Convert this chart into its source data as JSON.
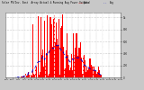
{
  "title": "Solar PV/Inv. East  Array Actual & Running Avg Power Output",
  "bg_color": "#c8c8c8",
  "plot_bg_color": "#ffffff",
  "bar_color": "#ff0000",
  "avg_line_color": "#0000cc",
  "grid_color": "#aaaaaa",
  "title_color": "#000000",
  "n_bars": 120,
  "ylim": [
    0,
    1.08
  ],
  "ytick_labels": [
    "0",
    "200",
    "400",
    "600",
    "800",
    "1k"
  ],
  "ytick_vals": [
    0.0,
    0.2,
    0.4,
    0.6,
    0.8,
    1.0
  ],
  "legend_actual": "Actual",
  "legend_avg": "Avg"
}
